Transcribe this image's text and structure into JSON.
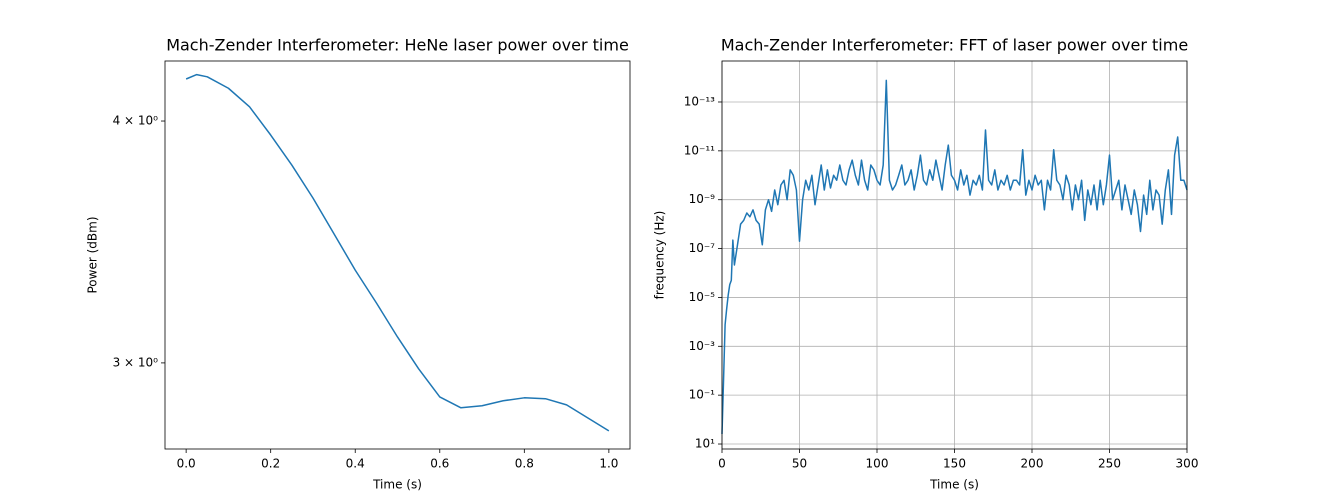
{
  "chart_data": [
    {
      "type": "line",
      "title": "Mach-Zender Interferometer: HeNe laser power over time",
      "x_label": "Time (s)",
      "y_label": "Power (dBm)",
      "color": "#1f77b4",
      "log_y": true,
      "grid": false,
      "xlim": [
        -0.05,
        1.05
      ],
      "xticks": [
        {
          "value": 0,
          "label": "0.0"
        },
        0.2,
        0.4,
        0.6,
        0.8,
        {
          "value": 1,
          "label": "1.0"
        }
      ],
      "ylim": [
        2.708,
        4.296
      ],
      "yticks": [
        {
          "value": 3,
          "label": "3 × 10⁰"
        },
        {
          "value": 4,
          "label": "4 × 10⁰"
        }
      ],
      "x": [
        0,
        0.025,
        0.05,
        0.1,
        0.15,
        0.2,
        0.25,
        0.3,
        0.35,
        0.4,
        0.45,
        0.5,
        0.55,
        0.6,
        0.65,
        0.7,
        0.75,
        0.8,
        0.85,
        0.9,
        0.95,
        1
      ],
      "values": [
        4.205,
        4.227,
        4.216,
        4.159,
        4.068,
        3.934,
        3.796,
        3.65,
        3.497,
        3.35,
        3.222,
        3.094,
        2.979,
        2.881,
        2.844,
        2.851,
        2.868,
        2.878,
        2.875,
        2.854,
        2.81,
        2.767
      ]
    },
    {
      "type": "line",
      "title": "Mach-Zender Interferometer: FFT of laser power over time",
      "x_label": "Time (s)",
      "y_label": "frequency (Hz)",
      "color": "#1f77b4",
      "log_y": true,
      "grid": true,
      "xlim": [
        0,
        300
      ],
      "xticks": [
        0,
        50,
        100,
        150,
        200,
        250,
        300
      ],
      "ylim": [
        16,
        2.1e-15
      ],
      "yticks": [
        {
          "value": 10,
          "label": "10¹"
        },
        {
          "value": 0.1,
          "label": "10⁻¹"
        },
        {
          "value": 0.001,
          "label": "10⁻³"
        },
        {
          "value": 1e-05,
          "label": "10⁻⁵"
        },
        {
          "value": 1e-07,
          "label": "10⁻⁷"
        },
        {
          "value": 1e-09,
          "label": "10⁻⁹"
        },
        {
          "value": 1e-11,
          "label": "10⁻¹¹"
        },
        {
          "value": 1e-13,
          "label": "10⁻¹³"
        }
      ],
      "x": [
        0,
        1,
        2,
        3,
        4,
        5,
        6,
        7,
        8,
        10,
        12,
        14,
        16,
        18,
        20,
        22,
        24,
        26,
        28,
        30,
        32,
        34,
        36,
        38,
        40,
        42,
        44,
        46,
        48,
        50,
        52,
        54,
        56,
        58,
        60,
        62,
        64,
        66,
        68,
        70,
        72,
        74,
        76,
        78,
        80,
        82,
        84,
        86,
        88,
        90,
        92,
        94,
        96,
        98,
        100,
        102,
        104,
        106,
        108,
        110,
        112,
        114,
        116,
        118,
        120,
        122,
        124,
        126,
        128,
        130,
        132,
        134,
        136,
        138,
        140,
        142,
        144,
        146,
        148,
        150,
        152,
        154,
        156,
        158,
        160,
        162,
        164,
        166,
        168,
        170,
        172,
        174,
        176,
        178,
        180,
        182,
        184,
        186,
        188,
        190,
        192,
        194,
        196,
        198,
        200,
        202,
        204,
        206,
        208,
        210,
        212,
        214,
        216,
        218,
        220,
        222,
        224,
        226,
        228,
        230,
        232,
        234,
        236,
        238,
        240,
        242,
        244,
        246,
        248,
        250,
        252,
        254,
        256,
        258,
        260,
        262,
        264,
        266,
        268,
        270,
        272,
        274,
        276,
        278,
        280,
        282,
        284,
        286,
        288,
        290,
        292,
        294,
        296,
        298,
        300
      ],
      "values": [
        3.9,
        0.024,
        0.00013,
        3e-05,
        8e-06,
        3e-06,
        2e-06,
        4.5e-08,
        4.7e-07,
        7e-08,
        1e-08,
        7e-09,
        3.5e-09,
        5e-09,
        2.6e-09,
        7e-09,
        1e-08,
        7e-08,
        2.6e-09,
        1e-09,
        3e-09,
        4e-10,
        1.6e-09,
        2.5e-10,
        1.6e-10,
        1e-09,
        6e-11,
        1e-10,
        4e-10,
        5e-08,
        1e-09,
        1.6e-10,
        4e-10,
        1e-10,
        1.6e-09,
        2.5e-10,
        3.8e-11,
        4e-10,
        6e-11,
        3.3e-10,
        1e-10,
        1.6e-10,
        3.8e-11,
        1.6e-10,
        2.5e-10,
        6e-11,
        2.4e-11,
        1e-10,
        2.5e-10,
        2.4e-11,
        1.6e-10,
        4e-10,
        3.8e-11,
        6e-11,
        1.6e-10,
        2.5e-10,
        3.8e-11,
        1.3e-14,
        1.6e-10,
        4e-10,
        2.5e-10,
        1e-10,
        3.8e-11,
        2.5e-10,
        1.6e-10,
        6e-11,
        4e-10,
        1e-10,
        1.5e-11,
        1.6e-10,
        2.5e-10,
        6e-11,
        1.6e-10,
        2.4e-11,
        1e-10,
        4e-10,
        3.8e-11,
        5.8e-12,
        1e-10,
        1.6e-10,
        4e-10,
        6e-11,
        2.5e-10,
        1e-10,
        6.5e-10,
        1.6e-10,
        2.5e-10,
        1e-10,
        4e-10,
        1.4e-12,
        1.6e-10,
        2.5e-10,
        6e-11,
        4e-10,
        1.6e-10,
        2.5e-10,
        1e-10,
        4e-10,
        1.6e-10,
        1.6e-10,
        2.5e-10,
        9e-12,
        6.5e-10,
        1.6e-10,
        4e-10,
        1e-10,
        2.5e-10,
        1.6e-10,
        2.6e-09,
        1.6e-10,
        4e-10,
        9e-12,
        1.6e-10,
        2.5e-10,
        1e-09,
        1e-10,
        2.5e-10,
        2.6e-09,
        2.5e-10,
        1e-09,
        1.6e-10,
        7e-09,
        4e-10,
        1.6e-09,
        2.5e-10,
        2.6e-09,
        1.6e-10,
        1.6e-09,
        2.5e-10,
        1.5e-11,
        1e-09,
        4e-10,
        1.6e-10,
        2.6e-09,
        2.5e-10,
        1e-09,
        4e-09,
        4e-10,
        1.6e-09,
        2e-08,
        6.5e-10,
        4e-09,
        1.6e-10,
        2.6e-09,
        4e-10,
        6.5e-10,
        1e-08,
        4e-10,
        6e-11,
        4e-09,
        1.5e-11,
        2.7e-12,
        1.6e-10,
        1.6e-10,
        4e-10
      ]
    }
  ]
}
